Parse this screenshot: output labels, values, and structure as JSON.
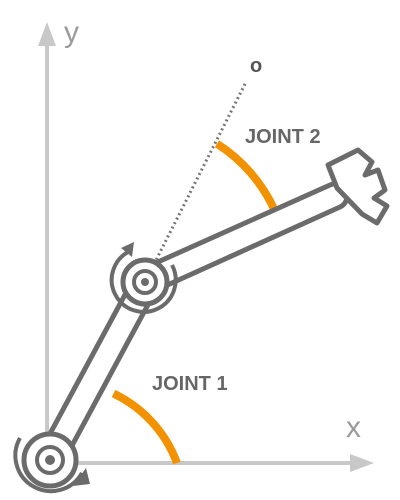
{
  "labels": {
    "y_axis": "y",
    "x_axis": "x",
    "joint1": "JOINT 1",
    "joint2": "JOINT 2",
    "origin": "o"
  },
  "colors": {
    "axis": "#c8c8c8",
    "arm_stroke": "#6b6b6b",
    "arc": "#f39200",
    "dotted_line": "#777777",
    "background": "#ffffff"
  },
  "icons": {
    "base_joint": "rotation-arrow-icon",
    "elbow_joint": "rotation-arrow-icon",
    "end_effector": "gripper-icon"
  }
}
